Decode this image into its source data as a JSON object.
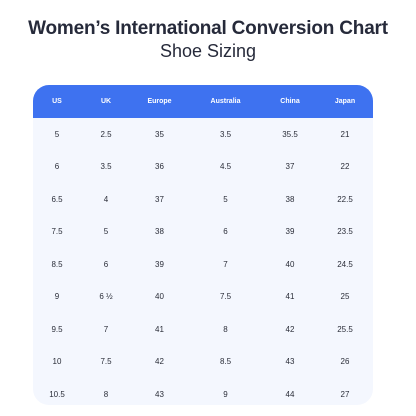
{
  "header": {
    "title": "Women’s International Conversion Chart",
    "subtitle": "Shoe Sizing"
  },
  "table": {
    "columns": [
      "US",
      "UK",
      "Europe",
      "Australia",
      "China",
      "Japan"
    ],
    "rows": [
      [
        "5",
        "2.5",
        "35",
        "3.5",
        "35.5",
        "21"
      ],
      [
        "6",
        "3.5",
        "36",
        "4.5",
        "37",
        "22"
      ],
      [
        "6.5",
        "4",
        "37",
        "5",
        "38",
        "22.5"
      ],
      [
        "7.5",
        "5",
        "38",
        "6",
        "39",
        "23.5"
      ],
      [
        "8.5",
        "6",
        "39",
        "7",
        "40",
        "24.5"
      ],
      [
        "9",
        "6 ½",
        "40",
        "7.5",
        "41",
        "25"
      ],
      [
        "9.5",
        "7",
        "41",
        "8",
        "42",
        "25.5"
      ],
      [
        "10",
        "7.5",
        "42",
        "8.5",
        "43",
        "26"
      ],
      [
        "10.5",
        "8",
        "43",
        "9",
        "44",
        "27"
      ]
    ]
  },
  "colors": {
    "header_bg": "#3e72f0",
    "table_bg": "#f4f7fe",
    "title_text": "#262a3a"
  }
}
